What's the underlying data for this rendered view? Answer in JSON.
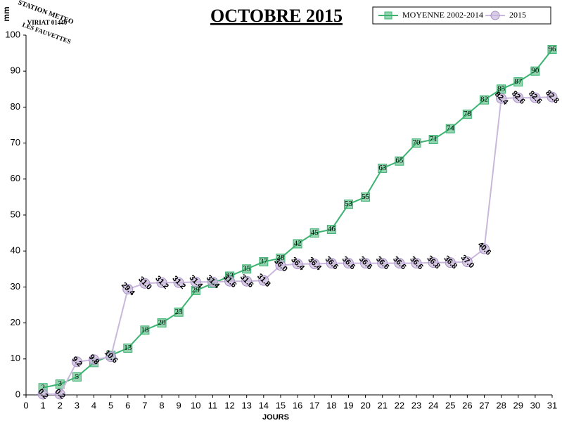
{
  "logo": [
    "STATION METEO",
    "VIRIAT 01440",
    "LES FAUVETTES"
  ],
  "chart_data": {
    "type": "line",
    "title": "OCTOBRE 2015",
    "xlabel": "JOURS",
    "ylabel": "mm",
    "x": [
      1,
      2,
      3,
      4,
      5,
      6,
      7,
      8,
      9,
      10,
      11,
      12,
      13,
      14,
      15,
      16,
      17,
      18,
      19,
      20,
      21,
      22,
      23,
      24,
      25,
      26,
      27,
      28,
      29,
      30,
      31
    ],
    "series": [
      {
        "name": "MOYENNE 2002-2014",
        "color": "#3cb371",
        "marker": "square",
        "values": [
          2,
          3,
          5,
          9,
          11,
          13,
          18,
          20,
          23,
          29,
          31,
          33,
          35,
          37,
          38,
          42,
          45,
          46,
          53,
          55,
          63,
          65,
          70,
          71,
          74,
          78,
          82,
          85,
          87,
          90,
          96
        ]
      },
      {
        "name": "2015",
        "color": "#c9b8dc",
        "marker": "circle",
        "values": [
          0.2,
          0.2,
          9.2,
          9.8,
          10.6,
          29.4,
          31.0,
          31.2,
          31.2,
          31.4,
          31.4,
          31.6,
          31.6,
          31.8,
          36.0,
          36.4,
          36.4,
          36.6,
          36.6,
          36.6,
          36.6,
          36.6,
          36.6,
          36.8,
          36.8,
          37.0,
          40.6,
          82.4,
          82.6,
          82.6,
          82.8
        ],
        "value_labels": [
          "0.2",
          "0.2",
          "9.2",
          "9.8",
          "10.6",
          "29.4",
          "31.0",
          "31.2",
          "31.2",
          "31.4",
          "31.4",
          "31.6",
          "31.6",
          "31.8",
          "36.0",
          "36.4",
          "36.4",
          "36.6",
          "36.6",
          "36.6",
          "36.6",
          "36.6",
          "36.6",
          "36.8",
          "36.8",
          "37.0",
          "40.6",
          "82.4",
          "82.6",
          "82.6",
          "82.8"
        ]
      }
    ],
    "xlim": [
      0,
      31
    ],
    "xticks": [
      0,
      1,
      2,
      3,
      4,
      5,
      6,
      7,
      8,
      9,
      10,
      11,
      12,
      13,
      14,
      15,
      16,
      17,
      18,
      19,
      20,
      21,
      22,
      23,
      24,
      25,
      26,
      27,
      28,
      29,
      30,
      31
    ],
    "ylim": [
      0,
      100
    ],
    "yticks": [
      0,
      10,
      20,
      30,
      40,
      50,
      60,
      70,
      80,
      90,
      100
    ],
    "legend": "top-right"
  }
}
